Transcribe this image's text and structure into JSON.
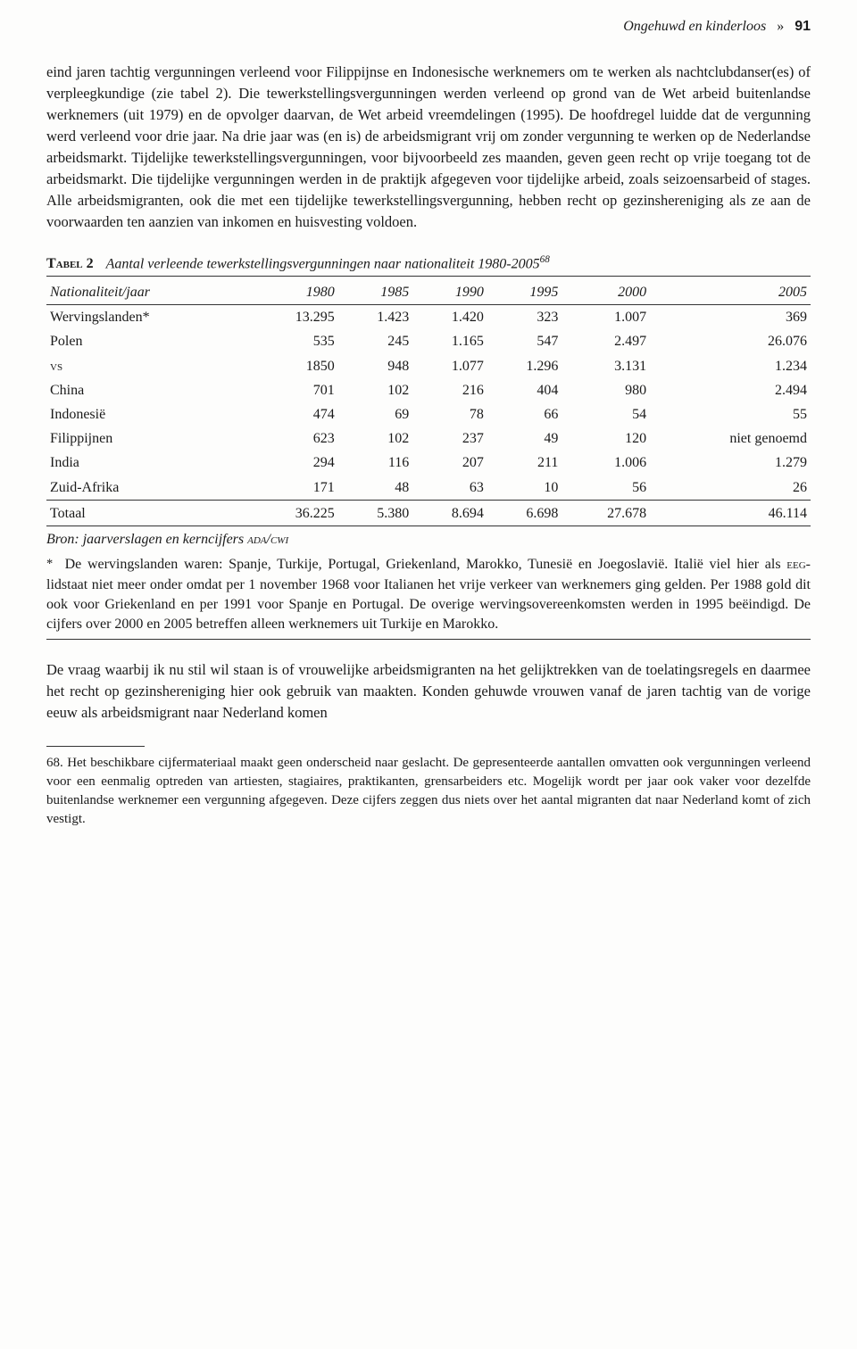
{
  "header": {
    "running_title": "Ongehuwd en kinderloos",
    "separator": "»",
    "page_number": "91"
  },
  "paragraph1": "eind jaren tachtig vergunningen verleend voor Filippijnse en Indonesische werknemers om te werken als nachtclubdanser(es) of verpleegkundige (zie tabel 2). Die tewerkstellingsvergunningen werden verleend op grond van de Wet arbeid buitenlandse werknemers (uit 1979) en de opvolger daarvan, de Wet arbeid vreemdelingen (1995). De hoofdregel luidde dat de vergunning werd verleend voor drie jaar. Na drie jaar was (en is) de arbeidsmigrant vrij om zonder vergunning te werken op de Nederlandse arbeidsmarkt. Tijdelijke tewerkstellingsvergunningen, voor bijvoorbeeld zes maanden, geven geen recht op vrije toegang tot de arbeidsmarkt. Die tijdelijke vergunningen werden in de praktijk afgegeven voor tijdelijke arbeid, zoals seizoensarbeid of stages. Alle arbeidsmigranten, ook die met een tijdelijke tewerkstellingsvergunning, hebben recht op gezinshereniging als ze aan de voorwaarden ten aanzien van inkomen en huisvesting voldoen.",
  "table": {
    "label": "Tabel 2",
    "caption": "Aantal verleende tewerkstellingsvergunningen naar nationaliteit 1980-2005",
    "caption_sup": "68",
    "header_first": "Nationaliteit/jaar",
    "years": [
      "1980",
      "1985",
      "1990",
      "1995",
      "2000",
      "2005"
    ],
    "rows": [
      {
        "label": "Wervingslanden*",
        "cells": [
          "13.295",
          "1.423",
          "1.420",
          "323",
          "1.007",
          "369"
        ]
      },
      {
        "label": "Polen",
        "cells": [
          "535",
          "245",
          "1.165",
          "547",
          "2.497",
          "26.076"
        ]
      },
      {
        "label": "vs",
        "cells": [
          "1850",
          "948",
          "1.077",
          "1.296",
          "3.131",
          "1.234"
        ]
      },
      {
        "label": "China",
        "cells": [
          "701",
          "102",
          "216",
          "404",
          "980",
          "2.494"
        ]
      },
      {
        "label": "Indonesië",
        "cells": [
          "474",
          "69",
          "78",
          "66",
          "54",
          "55"
        ]
      },
      {
        "label": "Filippijnen",
        "cells": [
          "623",
          "102",
          "237",
          "49",
          "120",
          "niet genoemd"
        ]
      },
      {
        "label": "India",
        "cells": [
          "294",
          "116",
          "207",
          "211",
          "1.006",
          "1.279"
        ]
      },
      {
        "label": "Zuid-Afrika",
        "cells": [
          "171",
          "48",
          "63",
          "10",
          "56",
          "26"
        ]
      }
    ],
    "total": {
      "label": "Totaal",
      "cells": [
        "36.225",
        "5.380",
        "8.694",
        "6.698",
        "27.678",
        "46.114"
      ]
    },
    "source_label": "Bron",
    "source_text": ": jaarverslagen en kerncijfers ",
    "source_sc": "ada/cwi",
    "note_marker": "*",
    "note_pre": "De wervingslanden waren: Spanje, Turkije, Portugal, Griekenland, Marokko, Tunesië en Joegoslavië. Italië viel hier als ",
    "note_sc": "eeg",
    "note_post": "-lidstaat niet meer onder omdat per 1 november 1968 voor Italianen het vrije verkeer van werknemers ging gelden. Per 1988 gold dit ook voor Griekenland en per 1991 voor Spanje en Portugal. De overige wervingsovereenkomsten werden in 1995 beëindigd. De cijfers over 2000 en 2005 betreffen alleen werknemers uit Turkije en Marokko."
  },
  "paragraph2": "De vraag waarbij ik nu stil wil staan is of vrouwelijke arbeidsmigranten na het gelijktrekken van de toelatingsregels en daarmee het recht op gezinshereniging hier ook gebruik van maakten. Konden gehuwde vrouwen vanaf de jaren tachtig van de vorige eeuw als arbeidsmigrant naar Nederland komen",
  "footnote": {
    "number": "68.",
    "text": " Het beschikbare cijfermateriaal maakt geen onderscheid naar geslacht. De gepresenteerde aantallen omvatten ook vergunningen verleend voor een eenmalig optreden van artiesten, stagiaires, praktikanten, grensarbeiders etc. Mogelijk wordt per jaar ook vaker voor dezelfde buitenlandse werknemer een vergunning afgegeven. Deze cijfers zeggen dus niets over het aantal migranten dat naar Nederland komt of zich vestigt."
  }
}
